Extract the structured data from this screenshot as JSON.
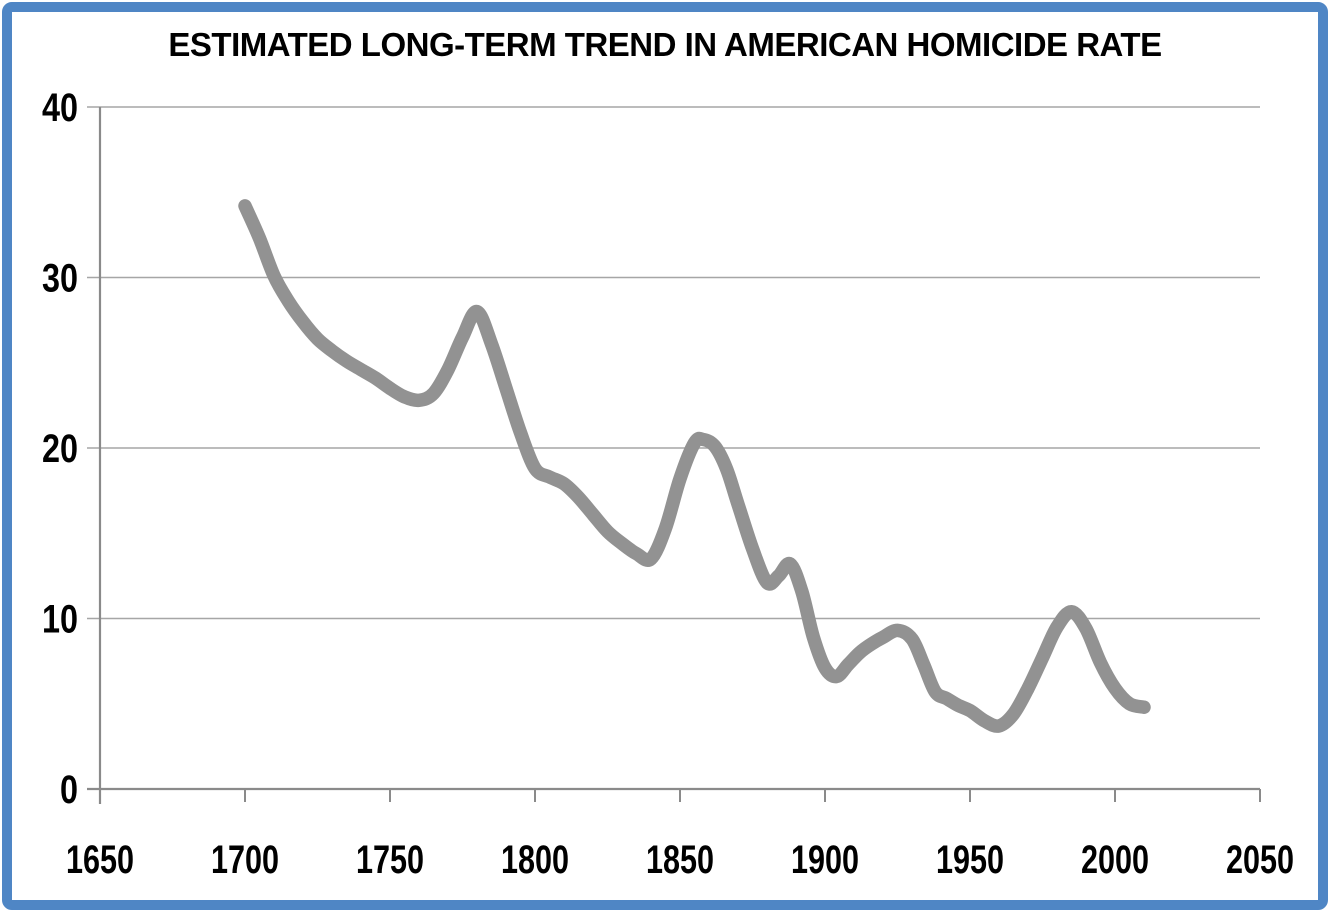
{
  "frame": {
    "border_color": "#4f86c5",
    "background": "#ffffff"
  },
  "chart_data": {
    "type": "line",
    "title": "ESTIMATED LONG-TERM TREND IN AMERICAN HOMICIDE RATE",
    "xlabel": "",
    "ylabel": "",
    "xlim": [
      1650,
      2050
    ],
    "ylim": [
      0,
      40
    ],
    "x_ticks": [
      1650,
      1700,
      1750,
      1800,
      1850,
      1900,
      1950,
      2000,
      2050
    ],
    "x_tick_labels": [
      "1650",
      "1700",
      "1750",
      "1800",
      "1850",
      "1900",
      "1950",
      "2000",
      "2050"
    ],
    "y_ticks": [
      0,
      10,
      20,
      30,
      40
    ],
    "y_tick_labels": [
      "0",
      "10",
      "20",
      "30",
      "40"
    ],
    "grid": "horizontal gridlines at each y tick",
    "legend": "none",
    "x": [
      1700,
      1705,
      1710,
      1715,
      1720,
      1725,
      1730,
      1735,
      1740,
      1745,
      1750,
      1755,
      1760,
      1765,
      1770,
      1775,
      1780,
      1785,
      1790,
      1795,
      1800,
      1805,
      1810,
      1815,
      1820,
      1825,
      1830,
      1835,
      1840,
      1845,
      1850,
      1855,
      1858,
      1862,
      1866,
      1870,
      1875,
      1880,
      1884,
      1888,
      1892,
      1896,
      1900,
      1904,
      1908,
      1912,
      1916,
      1920,
      1925,
      1930,
      1934,
      1938,
      1942,
      1946,
      1950,
      1955,
      1960,
      1965,
      1970,
      1975,
      1980,
      1985,
      1990,
      1995,
      2000,
      2005,
      2010
    ],
    "values": [
      34.2,
      32.3,
      30.1,
      28.6,
      27.4,
      26.4,
      25.7,
      25.1,
      24.6,
      24.1,
      23.5,
      23.0,
      22.8,
      23.2,
      24.6,
      26.5,
      28.0,
      26.1,
      23.5,
      20.9,
      18.8,
      18.3,
      17.9,
      17.1,
      16.1,
      15.1,
      14.4,
      13.8,
      13.5,
      15.3,
      18.2,
      20.3,
      20.5,
      20.1,
      18.8,
      16.7,
      14.1,
      12.1,
      12.5,
      13.2,
      11.6,
      8.9,
      7.1,
      6.6,
      7.3,
      8.0,
      8.5,
      8.9,
      9.3,
      8.8,
      7.3,
      5.7,
      5.3,
      4.9,
      4.6,
      4.0,
      3.7,
      4.4,
      5.9,
      7.7,
      9.5,
      10.4,
      9.4,
      7.4,
      5.9,
      5.0,
      4.8
    ],
    "line_color": "#929292",
    "grid_color": "#a6a6a6",
    "axis_color": "#8a8a8a",
    "text_color": "#000000"
  }
}
